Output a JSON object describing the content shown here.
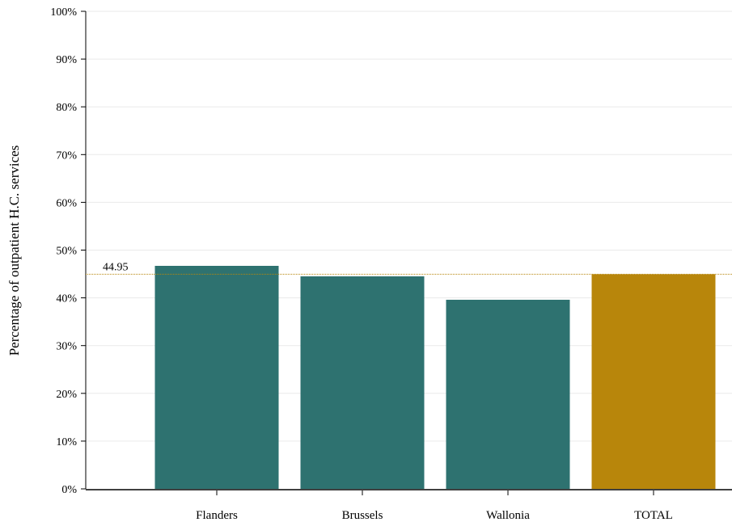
{
  "chart_data": {
    "type": "bar",
    "categories": [
      "Flanders",
      "Brussels",
      "Wallonia",
      "TOTAL"
    ],
    "values": [
      46.7,
      44.5,
      39.6,
      44.95
    ],
    "bar_colors": [
      "#2e7270",
      "#2e7270",
      "#2e7270",
      "#b8860b"
    ],
    "ylabel": "Percentage of outpatient H.C. services",
    "ylim": [
      0,
      100
    ],
    "yticks": [
      0,
      10,
      20,
      30,
      40,
      50,
      60,
      70,
      80,
      90,
      100
    ],
    "ytick_labels": [
      "0%",
      "10%",
      "20%",
      "30%",
      "40%",
      "50%",
      "60%",
      "70%",
      "80%",
      "90%",
      "100%"
    ],
    "reference_line": {
      "value": 44.95,
      "label": "44.95",
      "color": "#b8860b"
    },
    "grid": true,
    "legend": "none"
  }
}
